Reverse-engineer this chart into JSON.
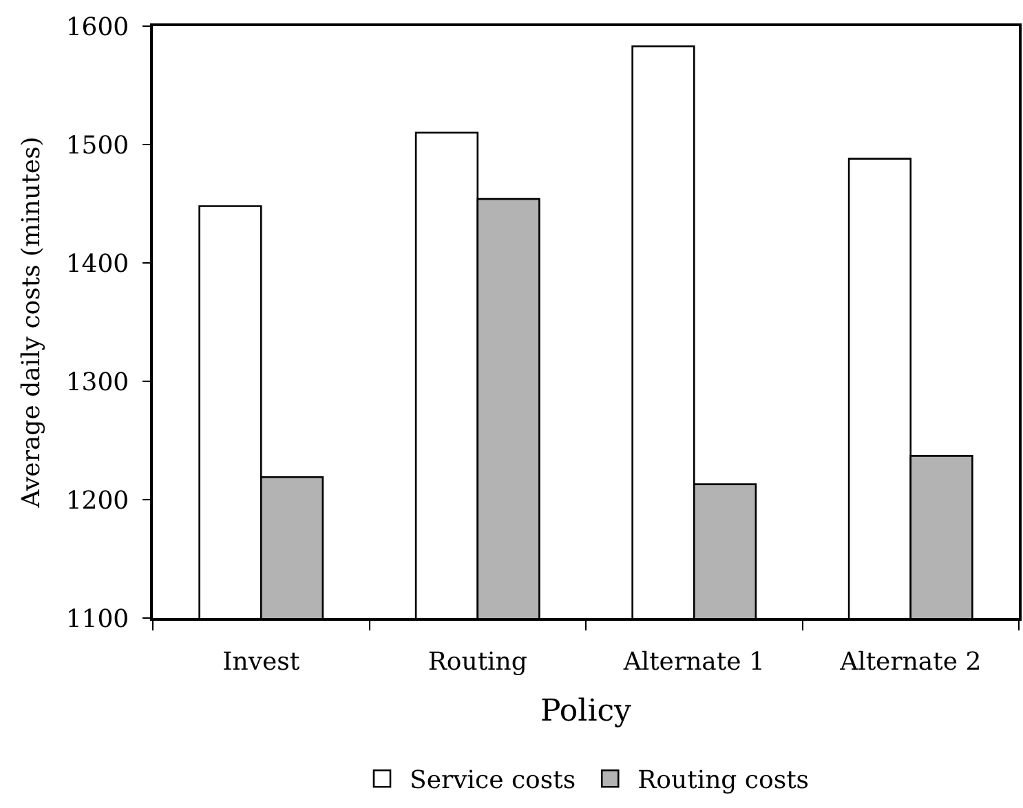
{
  "chart_data": {
    "type": "bar",
    "xlabel": "Policy",
    "ylabel": "Average daily costs (minutes)",
    "categories": [
      "Invest",
      "Routing",
      "Alternate 1",
      "Alternate 2"
    ],
    "series": [
      {
        "name": "Service costs",
        "color": "#ffffff",
        "values": [
          1448,
          1510,
          1583,
          1488
        ]
      },
      {
        "name": "Routing costs",
        "color": "#b3b3b3",
        "values": [
          1219,
          1454,
          1213,
          1237
        ]
      }
    ],
    "ylim": [
      1100,
      1600
    ],
    "yticks": [
      1100,
      1200,
      1300,
      1400,
      1500,
      1600
    ],
    "grid": false,
    "legend": "bottom"
  }
}
